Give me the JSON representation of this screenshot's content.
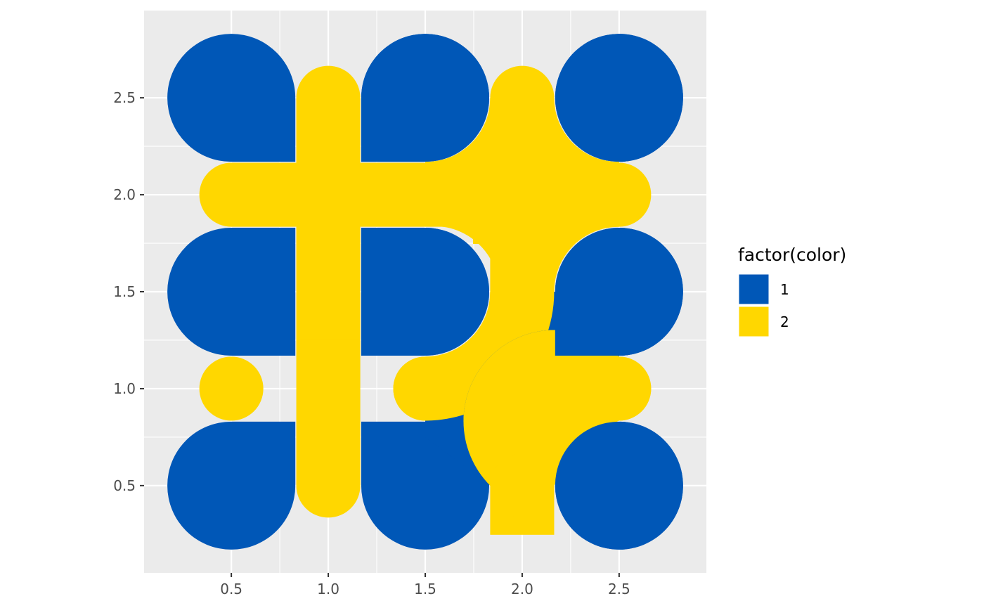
{
  "chart_data": {
    "type": "scatter",
    "description_free": true,
    "xlim": [
      0.05,
      2.95
    ],
    "ylim": [
      0.05,
      2.95
    ],
    "x_ticks": [
      "0.5",
      "1.0",
      "1.5",
      "2.0",
      "2.5"
    ],
    "y_ticks": [
      "0.5",
      "1.0",
      "1.5",
      "2.0",
      "2.5"
    ],
    "x_tick_values": [
      0.5,
      1.0,
      1.5,
      2.0,
      2.5
    ],
    "y_tick_values": [
      0.5,
      1.0,
      1.5,
      2.0,
      2.5
    ],
    "grid": true,
    "legend": {
      "title": "factor(color)",
      "position": "right",
      "entries": [
        {
          "label": "1",
          "color": "#0057B7"
        },
        {
          "label": "2",
          "color": "#FFD700"
        }
      ]
    },
    "colors": {
      "1": "#0057B7",
      "2": "#FFD700",
      "panel": "#EBEBEB",
      "grid": "#FFFFFF"
    },
    "tiles": [
      {
        "x": 0.5,
        "y": 2.5,
        "color": "1",
        "shape": "blob",
        "flat": [
          "SE"
        ]
      },
      {
        "x": 1.0,
        "y": 2.5,
        "color": "2",
        "shape": "stroke",
        "dir": "N"
      },
      {
        "x": 1.5,
        "y": 2.5,
        "color": "1",
        "shape": "blob",
        "flat": [
          "SW"
        ]
      },
      {
        "x": 2.0,
        "y": 2.5,
        "color": "2",
        "shape": "stroke",
        "dir": "N"
      },
      {
        "x": 2.5,
        "y": 2.5,
        "color": "1",
        "shape": "circle"
      },
      {
        "x": 0.5,
        "y": 2.0,
        "color": "2",
        "shape": "stroke",
        "dir": "W"
      },
      {
        "x": 1.0,
        "y": 2.0,
        "color": "2",
        "shape": "cross"
      },
      {
        "x": 1.5,
        "y": 2.0,
        "color": "2",
        "shape": "hbar"
      },
      {
        "x": 2.0,
        "y": 2.0,
        "color": "2",
        "shape": "junction"
      },
      {
        "x": 2.5,
        "y": 2.0,
        "color": "2",
        "shape": "stroke",
        "dir": "E"
      },
      {
        "x": 0.5,
        "y": 1.5,
        "color": "1",
        "shape": "blob",
        "flat": [
          "NE",
          "SE"
        ]
      },
      {
        "x": 1.0,
        "y": 1.5,
        "color": "2",
        "shape": "vbar"
      },
      {
        "x": 1.5,
        "y": 1.5,
        "color": "1",
        "shape": "blob",
        "flat": [
          "NW",
          "SW"
        ]
      },
      {
        "x": 2.0,
        "y": 1.5,
        "color": "2",
        "shape": "arc"
      },
      {
        "x": 2.5,
        "y": 1.5,
        "color": "1",
        "shape": "blob",
        "flat": [
          "SW"
        ]
      },
      {
        "x": 0.5,
        "y": 1.0,
        "color": "2",
        "shape": "dot"
      },
      {
        "x": 1.0,
        "y": 1.0,
        "color": "2",
        "shape": "vbar"
      },
      {
        "x": 1.5,
        "y": 1.0,
        "color": "2",
        "shape": "stroke",
        "dir": "W"
      },
      {
        "x": 2.5,
        "y": 1.0,
        "color": "2",
        "shape": "stroke",
        "dir": "E"
      },
      {
        "x": 0.5,
        "y": 0.5,
        "color": "1",
        "shape": "blob",
        "flat": [
          "NE"
        ]
      },
      {
        "x": 1.0,
        "y": 0.5,
        "color": "2",
        "shape": "stroke",
        "dir": "S"
      },
      {
        "x": 1.5,
        "y": 0.5,
        "color": "1",
        "shape": "blob",
        "flat": [
          "NW",
          "NE"
        ]
      },
      {
        "x": 2.0,
        "y": 0.5,
        "color": "2",
        "shape": "arc"
      },
      {
        "x": 2.5,
        "y": 0.5,
        "color": "1",
        "shape": "circle"
      }
    ]
  }
}
